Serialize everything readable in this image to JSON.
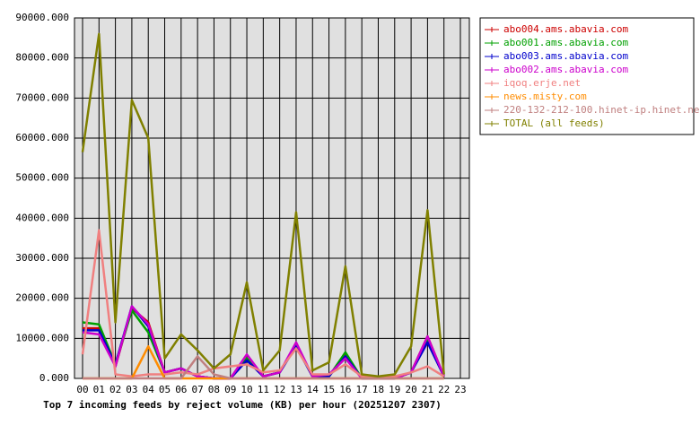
{
  "chart_data": {
    "type": "line",
    "title": "Top 7 incoming feeds by reject volume (KB) per hour (20251207 2307)",
    "categories": [
      "00",
      "01",
      "02",
      "03",
      "04",
      "05",
      "06",
      "07",
      "08",
      "09",
      "10",
      "11",
      "12",
      "13",
      "14",
      "15",
      "16",
      "17",
      "18",
      "19",
      "20",
      "21",
      "22",
      "23"
    ],
    "ylim": [
      0,
      90000
    ],
    "yticks": [
      {
        "value": 0,
        "label": "0.000"
      },
      {
        "value": 10000,
        "label": "10000.000"
      },
      {
        "value": 20000,
        "label": "20000.000"
      },
      {
        "value": 30000,
        "label": "30000.000"
      },
      {
        "value": 40000,
        "label": "40000.000"
      },
      {
        "value": 50000,
        "label": "50000.000"
      },
      {
        "value": 60000,
        "label": "60000.000"
      },
      {
        "value": 70000,
        "label": "70000.000"
      },
      {
        "value": 80000,
        "label": "80000.000"
      },
      {
        "value": 90000,
        "label": "90000.000"
      }
    ],
    "grid": true,
    "legend": "right",
    "series": [
      {
        "name": "abo004.ams.abavia.com",
        "color": "#cc0000",
        "values": [
          12500,
          12500,
          3000,
          17500,
          14000,
          1500,
          2500,
          500,
          0,
          0,
          5000,
          500,
          1500,
          8500,
          500,
          500,
          6000,
          0,
          0,
          0,
          1500,
          10500,
          500,
          null
        ]
      },
      {
        "name": "abo001.ams.abavia.com",
        "color": "#00a000",
        "values": [
          14000,
          13500,
          3500,
          17000,
          11500,
          1500,
          2500,
          500,
          0,
          0,
          5000,
          500,
          1500,
          8500,
          500,
          500,
          6500,
          0,
          0,
          0,
          1500,
          9500,
          500,
          null
        ]
      },
      {
        "name": "abo003.ams.abavia.com",
        "color": "#0000cc",
        "values": [
          12000,
          12000,
          3500,
          18000,
          13000,
          1500,
          2500,
          500,
          0,
          0,
          4500,
          500,
          1500,
          8000,
          500,
          500,
          5500,
          0,
          0,
          0,
          1500,
          9000,
          500,
          null
        ]
      },
      {
        "name": "abo002.ams.abavia.com",
        "color": "#cc00cc",
        "values": [
          11500,
          11000,
          3000,
          18000,
          13500,
          1500,
          2500,
          500,
          0,
          0,
          6000,
          500,
          1500,
          9000,
          500,
          1000,
          5000,
          0,
          0,
          0,
          1500,
          10500,
          500,
          null
        ]
      },
      {
        "name": "iqoq.erje.net",
        "color": "#f08080",
        "values": [
          6000,
          37000,
          1000,
          500,
          1000,
          1000,
          1500,
          1000,
          2500,
          3000,
          3500,
          1500,
          2000,
          7500,
          1000,
          1000,
          3500,
          500,
          0,
          500,
          1500,
          3000,
          500,
          null
        ]
      },
      {
        "name": "news.misty.com",
        "color": "#ff8c00",
        "values": [
          0,
          0,
          0,
          0,
          8000,
          0,
          0,
          0,
          0,
          0,
          0,
          0,
          0,
          0,
          0,
          0,
          0,
          0,
          0,
          0,
          0,
          0,
          0,
          null
        ]
      },
      {
        "name": "220-132-212-100.hinet-ip.hinet.net",
        "color": "#c08080",
        "values": [
          0,
          0,
          0,
          0,
          0,
          0,
          0,
          5500,
          1000,
          0,
          0,
          0,
          0,
          0,
          0,
          0,
          0,
          0,
          0,
          0,
          0,
          0,
          0,
          null
        ]
      },
      {
        "name": "TOTAL (all feeds)",
        "color": "#808000",
        "values": [
          56500,
          86000,
          14000,
          69500,
          60000,
          5000,
          11000,
          7000,
          2500,
          6000,
          24000,
          2000,
          7000,
          41500,
          2000,
          4000,
          28000,
          1000,
          500,
          1000,
          8000,
          42000,
          1000,
          null
        ]
      }
    ]
  }
}
